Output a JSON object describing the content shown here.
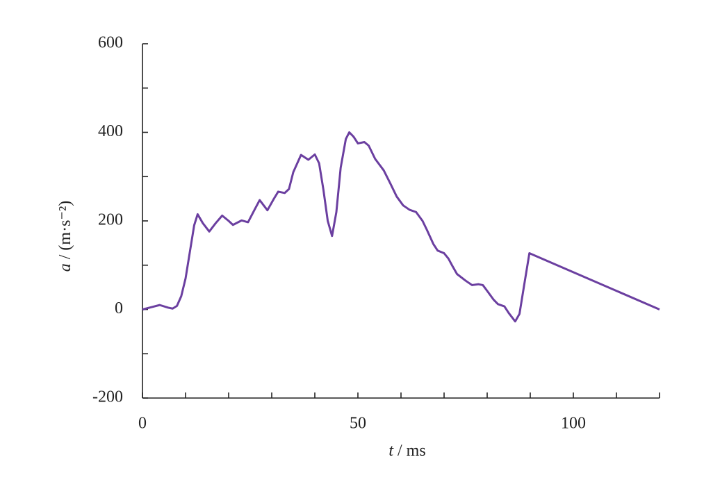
{
  "chart_data": {
    "type": "line",
    "x_label_symbol": "t",
    "x_label_unit": "/ ms",
    "y_label_symbol": "a",
    "y_label_unit": "/ (m·s⁻²)",
    "xlim": [
      0,
      120
    ],
    "xticks": [
      0,
      50,
      100
    ],
    "x_minor_ticks": [
      10,
      20,
      30,
      40,
      60,
      70,
      80,
      90,
      110,
      120
    ],
    "ylim": [
      -200,
      600
    ],
    "yticks": [
      -200,
      0,
      200,
      400,
      600
    ],
    "y_minor_ticks": [
      -100,
      100,
      300,
      500
    ],
    "grid": false,
    "series": [
      {
        "color": "#6b3fa0",
        "x": [
          0,
          2,
          4,
          6,
          7,
          8,
          9,
          10,
          11,
          12,
          12.8,
          14,
          15.5,
          17,
          18.5,
          20,
          21,
          23,
          24.5,
          26,
          27.2,
          29,
          30.5,
          31.5,
          33,
          34,
          35,
          36.8,
          38.5,
          40,
          41,
          42,
          43,
          44,
          45,
          46,
          47.2,
          48,
          49,
          50,
          51.5,
          52.5,
          54,
          56,
          57.5,
          59,
          60.5,
          62,
          63.5,
          65,
          66,
          67.5,
          68.5,
          70,
          71,
          72,
          73,
          75,
          76.5,
          78,
          79,
          80,
          81.5,
          82.5,
          84,
          85,
          86.5,
          87.5,
          88.5,
          89.8,
          120
        ],
        "values": [
          0,
          5,
          10,
          4,
          2,
          8,
          30,
          70,
          130,
          190,
          215,
          195,
          176,
          195,
          212,
          200,
          191,
          201,
          197,
          225,
          247,
          224,
          250,
          266,
          263,
          272,
          310,
          349,
          338,
          350,
          330,
          270,
          200,
          166,
          220,
          320,
          385,
          400,
          390,
          375,
          378,
          370,
          340,
          314,
          285,
          255,
          235,
          225,
          220,
          200,
          180,
          148,
          133,
          127,
          115,
          97,
          80,
          65,
          55,
          57,
          55,
          42,
          22,
          12,
          7,
          -8,
          -27,
          -10,
          50,
          127,
          0
        ]
      }
    ]
  }
}
